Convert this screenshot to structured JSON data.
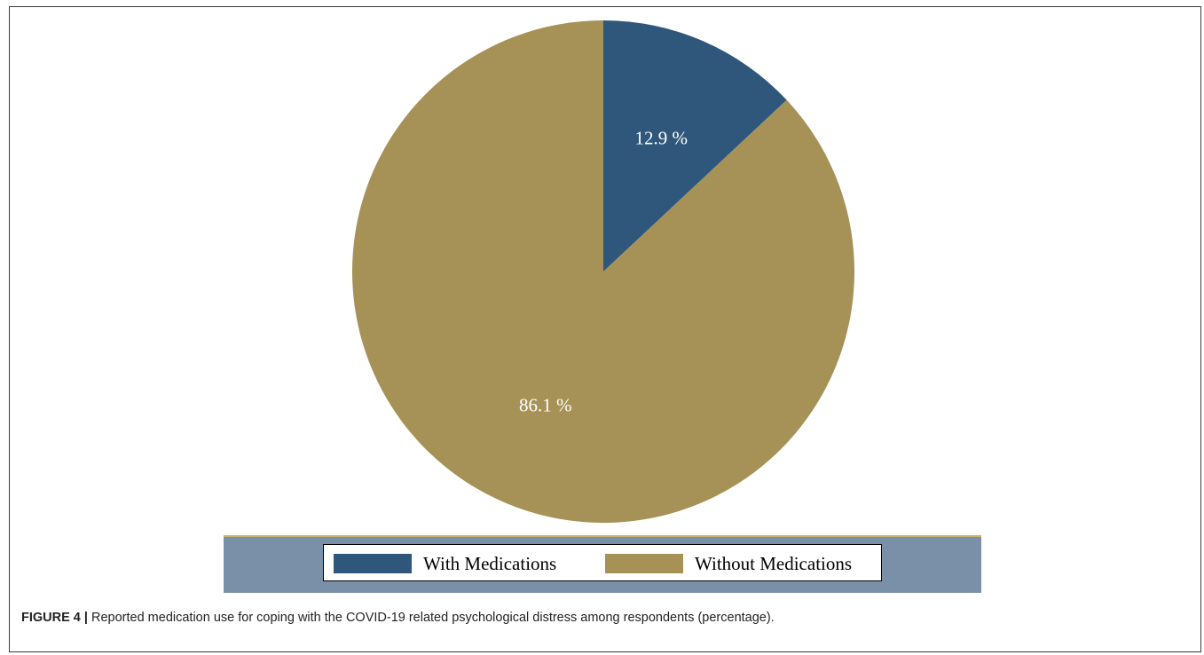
{
  "chart_data": {
    "type": "pie",
    "slices": [
      {
        "name": "With Medications",
        "value": 12.9,
        "label": "12.9 %",
        "color": "#2f577c"
      },
      {
        "name": "Without Medications",
        "value": 86.1,
        "label": "86.1 %",
        "color": "#a69256"
      }
    ],
    "legend": {
      "placement": "bottom",
      "entries": [
        "With Medications",
        "Without Medications"
      ],
      "band_color": "#7a90a8",
      "band_accent": "#c8b46a"
    }
  },
  "caption": {
    "label": "FIGURE 4 |",
    "text": " Reported medication use for coping with the COVID-19 related psychological distress among respondents (percentage)."
  }
}
